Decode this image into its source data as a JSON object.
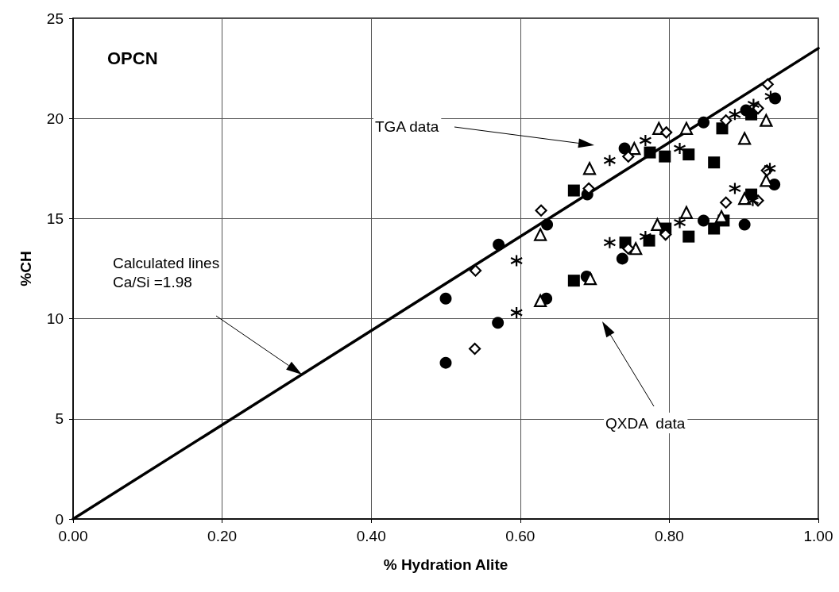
{
  "chart_data": {
    "type": "scatter",
    "title": "OPCN",
    "xlabel": "% Hydration Alite",
    "ylabel": "%CH",
    "xlim": [
      0,
      1
    ],
    "xticks": [
      {
        "value": 0,
        "label": "0.00"
      },
      {
        "value": 0.2,
        "label": "0.20"
      },
      {
        "value": 0.4,
        "label": "0.40"
      },
      {
        "value": 0.6,
        "label": "0.60"
      },
      {
        "value": 0.8,
        "label": "0.80"
      },
      {
        "value": 1,
        "label": "1.00"
      }
    ],
    "ylim": [
      0,
      25
    ],
    "yticks": [
      0,
      5,
      10,
      15,
      20,
      25
    ],
    "grid": true,
    "annotations": [
      "TGA data",
      "Calculated lines\nCa/Si =1.98",
      "QXDA  data"
    ],
    "series": [
      {
        "type": "line",
        "color": "#000000",
        "marker": "none",
        "line_style": "solid",
        "x": [
          0,
          1
        ],
        "values": [
          0,
          23.5
        ]
      },
      {
        "color": "#000000",
        "marker": "circle",
        "x": [
          0.5,
          0.5,
          0.57,
          0.571,
          0.636,
          0.635,
          0.69,
          0.689,
          0.74,
          0.846,
          0.903,
          0.942,
          0.737,
          0.846,
          0.901,
          0.941
        ],
        "values": [
          11.0,
          7.8,
          9.8,
          13.7,
          14.7,
          11.0,
          16.2,
          12.1,
          18.5,
          19.8,
          20.4,
          21.0,
          13.0,
          14.9,
          14.7,
          16.7
        ]
      },
      {
        "color": "#000000",
        "marker": "square",
        "x": [
          0.672,
          0.672,
          0.774,
          0.794,
          0.826,
          0.86,
          0.871,
          0.91,
          0.741,
          0.773,
          0.795,
          0.826,
          0.86,
          0.873,
          0.91
        ],
        "values": [
          16.4,
          11.9,
          18.3,
          18.1,
          18.2,
          17.8,
          19.5,
          20.2,
          13.8,
          13.9,
          14.5,
          14.1,
          14.5,
          14.9,
          16.2
        ]
      },
      {
        "color": "#000000",
        "marker": "triangle",
        "x": [
          0.627,
          0.693,
          0.627,
          0.694,
          0.753,
          0.786,
          0.823,
          0.901,
          0.93,
          0.755,
          0.784,
          0.823,
          0.87,
          0.901,
          0.93
        ],
        "values": [
          14.2,
          17.5,
          10.9,
          12.0,
          18.5,
          19.5,
          19.5,
          19.0,
          19.9,
          13.5,
          14.7,
          15.3,
          15.1,
          16.0,
          16.9
        ]
      },
      {
        "color": "#000000",
        "marker": "diamond",
        "x": [
          0.54,
          0.539,
          0.628,
          0.692,
          0.745,
          0.796,
          0.876,
          0.919,
          0.932,
          0.745,
          0.795,
          0.876,
          0.919,
          0.931
        ],
        "values": [
          12.4,
          8.5,
          15.4,
          16.5,
          18.1,
          19.3,
          19.9,
          20.5,
          21.7,
          13.5,
          14.2,
          15.8,
          15.9,
          17.4
        ]
      },
      {
        "color": "#000000",
        "marker": "cross",
        "x": [
          0.595,
          0.595,
          0.72,
          0.72,
          0.768,
          0.814,
          0.888,
          0.913,
          0.936,
          0.768,
          0.814,
          0.888,
          0.912,
          0.935
        ],
        "values": [
          12.9,
          10.3,
          17.9,
          13.8,
          18.9,
          18.5,
          20.2,
          20.7,
          21.1,
          14.1,
          14.8,
          16.5,
          15.9,
          17.5
        ]
      }
    ]
  }
}
